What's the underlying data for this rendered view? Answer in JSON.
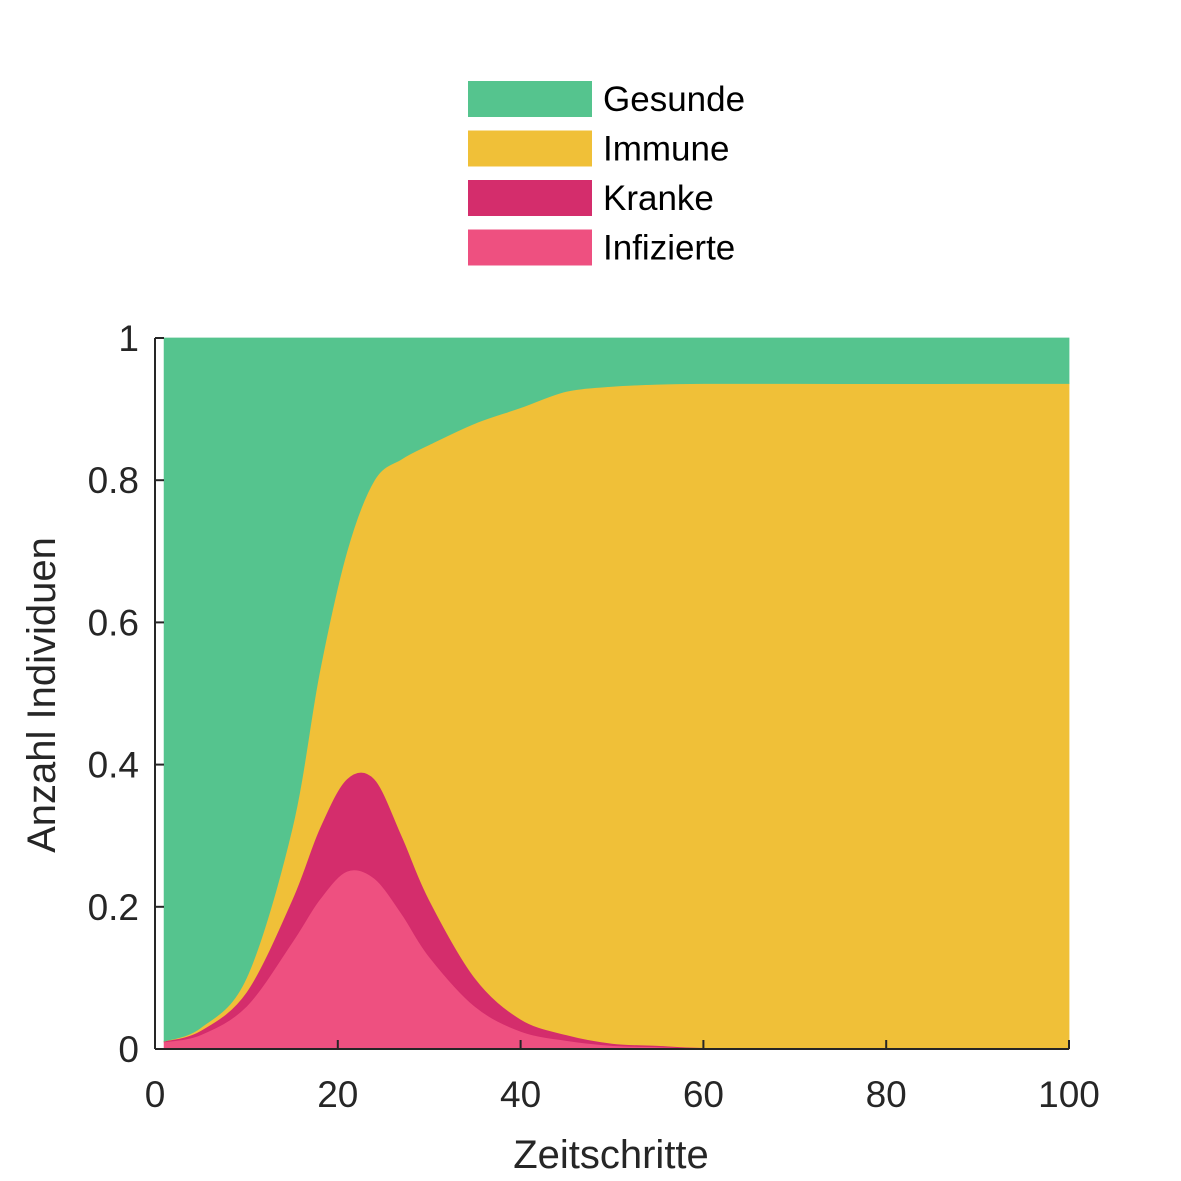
{
  "chart_data": {
    "type": "area",
    "stacked": true,
    "xlabel": "Zeitschritte",
    "ylabel": "Anzahl Individuen",
    "xlim": [
      0,
      100
    ],
    "ylim": [
      0,
      1
    ],
    "xticks": [
      0,
      20,
      40,
      60,
      80,
      100
    ],
    "xtick_labels": [
      "0",
      "20",
      "40",
      "60",
      "80",
      "100"
    ],
    "yticks": [
      0,
      0.2,
      0.4,
      0.6,
      0.8,
      1
    ],
    "ytick_labels": [
      "0",
      "0.2",
      "0.4",
      "0.6",
      "0.8",
      "1"
    ],
    "grid": false,
    "legend_position": "top",
    "x": [
      1,
      5,
      10,
      15,
      18,
      21,
      24,
      27,
      30,
      35,
      40,
      45,
      50,
      55,
      60,
      70,
      80,
      90,
      100
    ],
    "series": [
      {
        "name": "Infizierte",
        "color": "#ee5080",
        "values": [
          0.01,
          0.02,
          0.06,
          0.15,
          0.21,
          0.25,
          0.24,
          0.19,
          0.13,
          0.06,
          0.025,
          0.012,
          0.005,
          0.003,
          0.001,
          0.0005,
          0.0002,
          0.0001,
          0.0001
        ]
      },
      {
        "name": "Kranke",
        "color": "#d42d6c",
        "values": [
          0.001,
          0.006,
          0.02,
          0.06,
          0.1,
          0.13,
          0.14,
          0.11,
          0.08,
          0.04,
          0.017,
          0.008,
          0.003,
          0.002,
          0.001,
          0.0005,
          0.0002,
          0.0001,
          0.0001
        ]
      },
      {
        "name": "Immune",
        "color": "#f0c038",
        "values": [
          0.0,
          0.004,
          0.02,
          0.1,
          0.22,
          0.32,
          0.42,
          0.53,
          0.64,
          0.78,
          0.86,
          0.905,
          0.924,
          0.93,
          0.934,
          0.935,
          0.9355,
          0.9358,
          0.9358
        ]
      },
      {
        "name": "Gesunde",
        "color": "#55c48e",
        "values": [
          0.989,
          0.97,
          0.9,
          0.69,
          0.47,
          0.3,
          0.2,
          0.17,
          0.15,
          0.12,
          0.098,
          0.075,
          0.068,
          0.065,
          0.064,
          0.064,
          0.064,
          0.064,
          0.064
        ]
      }
    ],
    "legend_order": [
      "Gesunde",
      "Immune",
      "Kranke",
      "Infizierte"
    ]
  }
}
